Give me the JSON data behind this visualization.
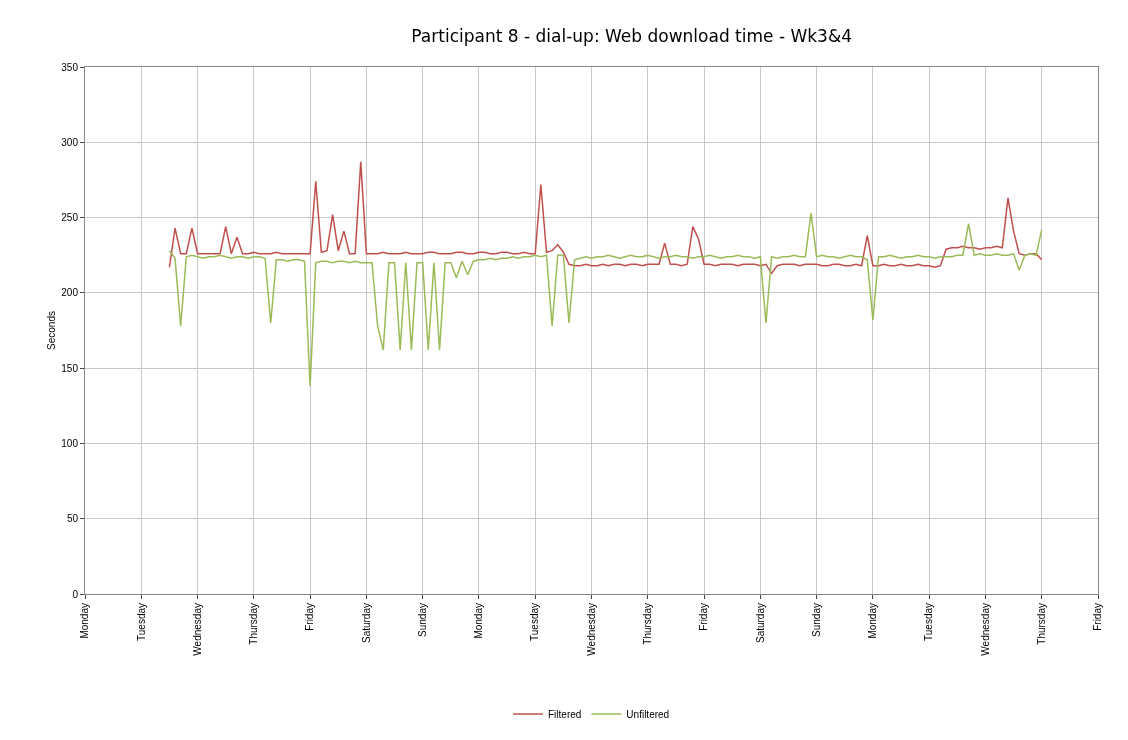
{
  "chart_data": {
    "type": "line",
    "title": "Participant 8 - dial-up: Web download time - Wk3&4",
    "ylabel": "Seconds",
    "categories": [
      "Monday",
      null,
      null,
      null,
      null,
      null,
      null,
      null,
      null,
      null,
      "Tuesday",
      null,
      null,
      null,
      null,
      null,
      null,
      null,
      null,
      null,
      "Wednesday",
      null,
      null,
      null,
      null,
      null,
      null,
      null,
      null,
      null,
      "Thursday",
      null,
      null,
      null,
      null,
      null,
      null,
      null,
      null,
      null,
      "Friday",
      null,
      null,
      null,
      null,
      null,
      null,
      null,
      null,
      null,
      "Saturday",
      null,
      null,
      null,
      null,
      null,
      null,
      null,
      null,
      null,
      "Sunday",
      null,
      null,
      null,
      null,
      null,
      null,
      null,
      null,
      null,
      "Monday",
      null,
      null,
      null,
      null,
      null,
      null,
      null,
      null,
      null,
      "Tuesday",
      null,
      null,
      null,
      null,
      null,
      null,
      null,
      null,
      null,
      "Wednesday",
      null,
      null,
      null,
      null,
      null,
      null,
      null,
      null,
      null,
      "Thursday",
      null,
      null,
      null,
      null,
      null,
      null,
      null,
      null,
      null,
      "Friday",
      null,
      null,
      null,
      null,
      null,
      null,
      null,
      null,
      null,
      "Saturday",
      null,
      null,
      null,
      null,
      null,
      null,
      null,
      null,
      null,
      "Sunday",
      null,
      null,
      null,
      null,
      null,
      null,
      null,
      null,
      null,
      "Monday",
      null,
      null,
      null,
      null,
      null,
      null,
      null,
      null,
      null,
      "Tuesday",
      null,
      null,
      null,
      null,
      null,
      null,
      null,
      null,
      null,
      "Wednesday",
      null,
      null,
      null,
      null,
      null,
      null,
      null,
      null,
      null,
      "Thursday",
      null,
      null,
      null,
      null,
      null,
      null,
      null,
      null,
      null,
      "Friday"
    ],
    "ylim": [
      0,
      350
    ],
    "yticks": [
      0,
      50,
      100,
      150,
      200,
      250,
      300,
      350
    ],
    "grid": true,
    "legend": "bottom",
    "marker": "none",
    "line_style": "solid",
    "series": [
      {
        "name": "Filtered",
        "color": "#c0504d",
        "values": [
          null,
          null,
          null,
          null,
          null,
          null,
          null,
          null,
          null,
          null,
          null,
          null,
          null,
          null,
          null,
          217,
          243,
          226,
          226,
          243,
          226,
          226,
          226,
          226,
          226,
          244,
          226,
          237,
          226,
          226,
          227,
          226,
          226,
          226,
          227,
          226,
          226,
          226,
          226,
          226,
          226,
          274,
          227,
          228,
          252,
          228,
          241,
          226,
          226,
          287,
          226,
          226,
          226,
          227,
          226,
          226,
          226,
          227,
          226,
          226,
          226,
          227,
          227,
          226,
          226,
          226,
          227,
          227,
          226,
          226,
          227,
          227,
          226,
          226,
          227,
          227,
          226,
          226,
          227,
          226,
          226,
          272,
          227,
          228,
          232,
          227,
          219,
          218,
          218,
          219,
          218,
          218,
          219,
          218,
          219,
          219,
          218,
          219,
          219,
          218,
          219,
          219,
          219,
          233,
          219,
          219,
          218,
          219,
          244,
          236,
          219,
          219,
          218,
          219,
          219,
          219,
          218,
          219,
          219,
          219,
          218,
          219,
          213,
          218,
          219,
          219,
          219,
          218,
          219,
          219,
          219,
          218,
          218,
          219,
          219,
          218,
          218,
          219,
          218,
          238,
          218,
          218,
          219,
          218,
          218,
          219,
          218,
          218,
          219,
          218,
          218,
          217,
          218,
          229,
          230,
          230,
          231,
          230,
          230,
          229,
          230,
          230,
          231,
          230,
          263,
          241,
          226,
          225,
          226,
          226,
          222,
          null,
          null,
          null,
          null,
          null,
          null,
          null,
          null,
          null,
          null
        ]
      },
      {
        "name": "Unfiltered",
        "color": "#9bbb59",
        "values": [
          null,
          null,
          null,
          null,
          null,
          null,
          null,
          null,
          null,
          null,
          null,
          null,
          null,
          null,
          null,
          228,
          223,
          178,
          224,
          225,
          224,
          223,
          224,
          224,
          225,
          224,
          223,
          224,
          224,
          223,
          224,
          224,
          223,
          180,
          222,
          222,
          221,
          222,
          222,
          221,
          138,
          220,
          221,
          221,
          220,
          221,
          221,
          220,
          221,
          220,
          220,
          220,
          178,
          162,
          220,
          220,
          162,
          220,
          162,
          220,
          220,
          162,
          220,
          162,
          220,
          220,
          210,
          221,
          212,
          221,
          222,
          222,
          223,
          222,
          223,
          223,
          224,
          223,
          224,
          224,
          225,
          224,
          225,
          178,
          225,
          225,
          180,
          222,
          223,
          224,
          223,
          224,
          224,
          225,
          224,
          223,
          224,
          225,
          224,
          224,
          225,
          224,
          223,
          224,
          224,
          225,
          224,
          224,
          223,
          224,
          224,
          225,
          224,
          223,
          224,
          224,
          225,
          224,
          224,
          223,
          224,
          180,
          224,
          223,
          224,
          224,
          225,
          224,
          224,
          253,
          224,
          225,
          224,
          224,
          223,
          224,
          225,
          224,
          224,
          222,
          182,
          224,
          224,
          225,
          224,
          223,
          224,
          224,
          225,
          224,
          224,
          223,
          224,
          224,
          224,
          225,
          225,
          246,
          225,
          226,
          225,
          225,
          226,
          225,
          225,
          226,
          215,
          225,
          226,
          225,
          242,
          null,
          null,
          null,
          null,
          null,
          null,
          null,
          null,
          null,
          null
        ]
      }
    ]
  }
}
